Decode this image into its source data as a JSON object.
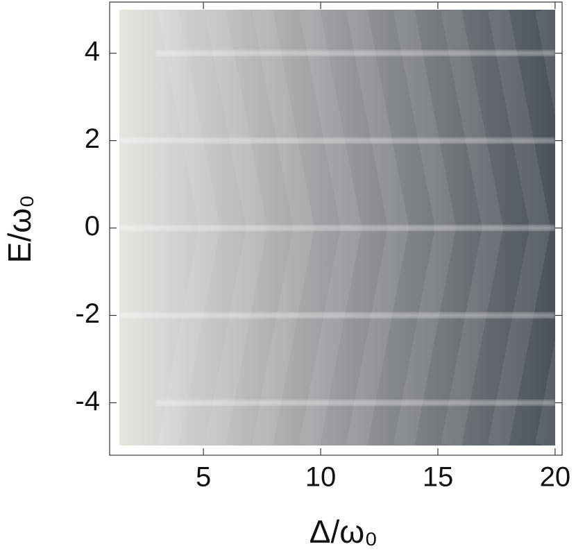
{
  "chart_data": {
    "type": "density",
    "x_label": "Δ/ω₀",
    "y_label": "E/ω₀",
    "xlim": [
      1,
      20.3
    ],
    "ylim": [
      -5.2,
      5.17
    ],
    "xticks": [
      5,
      10,
      15,
      20
    ],
    "yticks": [
      -4,
      -2,
      0,
      2,
      4
    ],
    "bright_lines": {
      "E": [
        -4,
        -2,
        0,
        2,
        4
      ],
      "start": [
        3,
        1,
        1,
        1,
        3
      ]
    },
    "color_low": "#e6e6e0",
    "color_high": "#4b525a"
  }
}
